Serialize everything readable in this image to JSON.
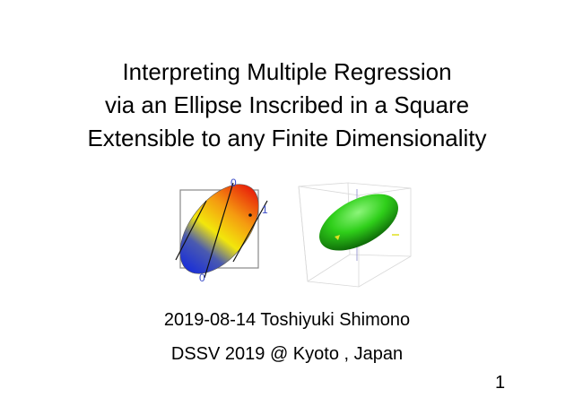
{
  "slide": {
    "title_lines": [
      "Interpreting Multiple Regression",
      "via an Ellipse Inscribed in a Square",
      "Extensible to any Finite Dimensionality"
    ],
    "author_line": "2019-08-14 Toshiyuki Shimono",
    "venue_line": "DSSV 2019 @ Kyoto , Japan",
    "page_number": "1"
  },
  "figure_left": {
    "labels": {
      "top": "0",
      "right": "1",
      "bottom": "0"
    },
    "colors": {
      "blue": "#1a2fd8",
      "yellow": "#f2e60c",
      "red": "#e8200a",
      "label": "#3a4bc8"
    }
  },
  "figure_right": {
    "colors": {
      "ellipsoid": "#2fcf1a",
      "point": "#e0e020"
    }
  }
}
